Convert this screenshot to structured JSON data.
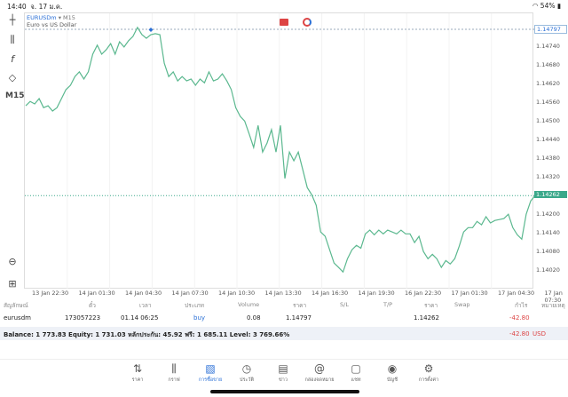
{
  "status": {
    "time": "14:40",
    "date": "จ. 17 ม.ค.",
    "battery": "54%"
  },
  "chart": {
    "symbol": "EURUSDm",
    "timeframe": "M15",
    "description": "Euro vs US Dollar",
    "tf_button": "M15",
    "open_price_label": "1.14797",
    "current_price_label": "1.14262",
    "price_ticks": [
      "1.14740",
      "1.14680",
      "1.14620",
      "1.14560",
      "1.14500",
      "1.14440",
      "1.14380",
      "1.14320",
      "1.14200",
      "1.14140",
      "1.14080",
      "1.14020"
    ],
    "time_ticks": [
      "13 Jan 22:30",
      "14 Jan 01:30",
      "14 Jan 04:30",
      "14 Jan 07:30",
      "14 Jan 10:30",
      "14 Jan 13:30",
      "14 Jan 16:30",
      "14 Jan 19:30",
      "16 Jan 22:30",
      "17 Jan 01:30",
      "17 Jan 04:30",
      "17 Jan 07:30"
    ],
    "line_color": "#5bb88f"
  },
  "chart_data": {
    "type": "line",
    "ylim": [
      1.13975,
      1.14835
    ],
    "open_price": 1.14797,
    "current_price": 1.14262,
    "values": [
      1.14551,
      1.14565,
      1.14557,
      1.14574,
      1.14545,
      1.14551,
      1.14534,
      1.14545,
      1.14574,
      1.14603,
      1.14617,
      1.14645,
      1.1466,
      1.14637,
      1.1466,
      1.14717,
      1.14746,
      1.14717,
      1.14731,
      1.14751,
      1.14717,
      1.14757,
      1.1474,
      1.1476,
      1.14774,
      1.14803,
      1.1478,
      1.14768,
      1.1478,
      1.14783,
      1.1478,
      1.14688,
      1.14645,
      1.1466,
      1.14631,
      1.14645,
      1.14631,
      1.14637,
      1.14617,
      1.14637,
      1.14625,
      1.1466,
      1.14631,
      1.14637,
      1.14654,
      1.14631,
      1.14603,
      1.14545,
      1.14517,
      1.14502,
      1.1446,
      1.14417,
      1.14488,
      1.14402,
      1.14431,
      1.14474,
      1.14402,
      1.14488,
      1.14317,
      1.14402,
      1.14374,
      1.14402,
      1.14345,
      1.14288,
      1.14265,
      1.14231,
      1.14145,
      1.14131,
      1.14088,
      1.14045,
      1.14031,
      1.14016,
      1.14059,
      1.14088,
      1.14102,
      1.14093,
      1.14139,
      1.14151,
      1.14136,
      1.14151,
      1.14139,
      1.14151,
      1.14145,
      1.14139,
      1.14151,
      1.14139,
      1.14139,
      1.14111,
      1.14131,
      1.14082,
      1.14059,
      1.14073,
      1.14059,
      1.14031,
      1.14053,
      1.14042,
      1.14059,
      1.14099,
      1.14145,
      1.14159,
      1.14159,
      1.14179,
      1.14168,
      1.14194,
      1.14174,
      1.14182,
      1.14185,
      1.14188,
      1.14202,
      1.14159,
      1.14136,
      1.14122,
      1.14202,
      1.14245,
      1.14262
    ]
  },
  "table": {
    "headers": [
      "สัญลักษณ์",
      "ตั๋ว",
      "เวลา",
      "ประเภท",
      "Volume",
      "ราคา",
      "S/L",
      "T/P",
      "ราคา",
      "Swap",
      "กำไร",
      "หมายเหตุ"
    ],
    "row": {
      "symbol": "eurusdm",
      "ticket": "173057223",
      "time": "01.14 06:25",
      "type": "buy",
      "volume": "0.08",
      "open_price": "1.14797",
      "current_price": "1.14262",
      "profit": "-42.80"
    }
  },
  "balance": {
    "text": "Balance: 1 773.83 Equity: 1 731.03 หลักประกัน: 45.92 ฟรี: 1 685.11 Level: 3 769.66%",
    "profit": "-42.80",
    "currency": "USD"
  },
  "nav": [
    {
      "label": "ราคา"
    },
    {
      "label": "กราฟ"
    },
    {
      "label": "การซื้อขาย"
    },
    {
      "label": "ประวัติ"
    },
    {
      "label": "ข่าว"
    },
    {
      "label": "กล่องจดหมาย"
    },
    {
      "label": "แชท"
    },
    {
      "label": "บัญชี"
    },
    {
      "label": "การตั้งค่า"
    }
  ]
}
